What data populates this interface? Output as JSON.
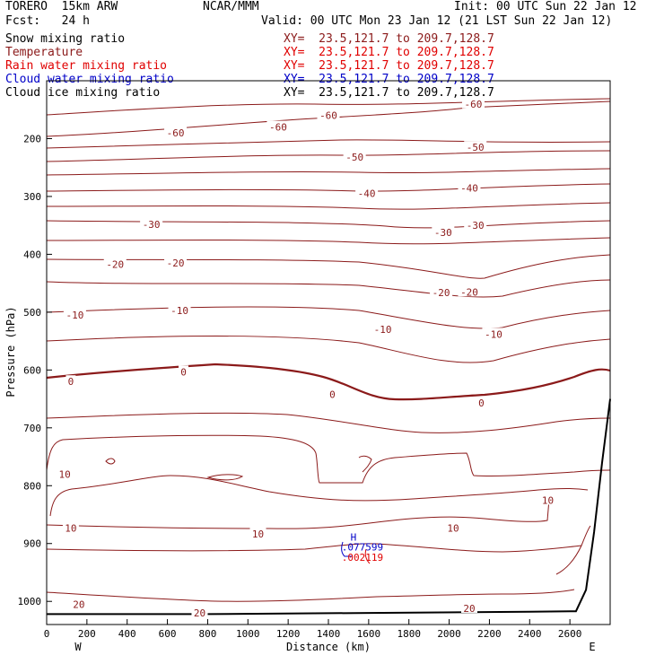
{
  "header": {
    "model": "TORERO  15km ARW",
    "center": "NCAR/MMM",
    "init": "Init: 00 UTC Sun 22 Jan 12",
    "fcst": "Fcst:   24 h",
    "valid": "Valid: 00 UTC Mon 23 Jan 12 (21 LST Sun 22 Jan 12)"
  },
  "legend": [
    {
      "label": "Snow mixing ratio",
      "xy": "XY=  23.5,121.7 to 209.7,128.7",
      "color": "#000000"
    },
    {
      "label": "Temperature",
      "xy": "XY=  23.5,121.7 to 209.7,128.7",
      "color": "#8b1a1a"
    },
    {
      "label": "Rain water mixing ratio",
      "xy": "XY=  23.5,121.7 to 209.7,128.7",
      "color": "#e00000"
    },
    {
      "label": "Cloud water mixing ratio",
      "xy": "XY=  23.5,121.7 to 209.7,128.7",
      "color": "#0000c8"
    },
    {
      "label": "Cloud ice mixing ratio",
      "xy": "XY=  23.5,121.7 to 209.7,128.7",
      "color": "#000000"
    }
  ],
  "chart_data": {
    "type": "contour-cross-section",
    "xlabel": "Distance (km)",
    "ylabel": "Pressure (hPa)",
    "xlim": [
      0,
      2800
    ],
    "ylim": [
      1040,
      100
    ],
    "x_ticks": [
      0,
      200,
      400,
      600,
      800,
      1000,
      1200,
      1400,
      1600,
      1800,
      2000,
      2200,
      2400,
      2600
    ],
    "y_ticks": [
      200,
      300,
      400,
      500,
      600,
      700,
      800,
      900,
      1000
    ],
    "x_ends": {
      "left": "W",
      "right": "E"
    },
    "temperature_labels": [
      {
        "text": "-60",
        "x": 640,
        "p": 190
      },
      {
        "text": "-60",
        "x": 1150,
        "p": 180
      },
      {
        "text": "-60",
        "x": 1400,
        "p": 160
      },
      {
        "text": "-60",
        "x": 2120,
        "p": 140
      },
      {
        "text": "-50",
        "x": 1530,
        "p": 232
      },
      {
        "text": "-50",
        "x": 2130,
        "p": 215
      },
      {
        "text": "-40",
        "x": 1590,
        "p": 295
      },
      {
        "text": "-40",
        "x": 2100,
        "p": 285
      },
      {
        "text": "-30",
        "x": 520,
        "p": 348
      },
      {
        "text": "-30",
        "x": 1970,
        "p": 362
      },
      {
        "text": "-30",
        "x": 2130,
        "p": 350
      },
      {
        "text": "-20",
        "x": 340,
        "p": 417
      },
      {
        "text": "-20",
        "x": 640,
        "p": 415
      },
      {
        "text": "-20",
        "x": 1960,
        "p": 466
      },
      {
        "text": "-20",
        "x": 2100,
        "p": 465
      },
      {
        "text": "-10",
        "x": 140,
        "p": 505
      },
      {
        "text": "-10",
        "x": 660,
        "p": 497
      },
      {
        "text": "-10",
        "x": 1670,
        "p": 530
      },
      {
        "text": "-10",
        "x": 2220,
        "p": 538
      },
      {
        "text": "0",
        "x": 120,
        "p": 620
      },
      {
        "text": "0",
        "x": 680,
        "p": 603
      },
      {
        "text": "0",
        "x": 1420,
        "p": 642
      },
      {
        "text": "0",
        "x": 2160,
        "p": 657
      },
      {
        "text": "10",
        "x": 90,
        "p": 780
      },
      {
        "text": "10",
        "x": 120,
        "p": 873
      },
      {
        "text": "10",
        "x": 1050,
        "p": 883
      },
      {
        "text": "10",
        "x": 2020,
        "p": 873
      },
      {
        "text": "10",
        "x": 2490,
        "p": 825
      },
      {
        "text": "20",
        "x": 160,
        "p": 1005
      },
      {
        "text": "20",
        "x": 760,
        "p": 1020
      },
      {
        "text": "20",
        "x": 2100,
        "p": 1012
      }
    ],
    "max_marker": {
      "symbol": "H",
      "x": 1560,
      "p": 895
    },
    "point_values": [
      {
        "text": ".077599",
        "color": "#0000c8",
        "x": 1560,
        "p": 912
      },
      {
        "text": ".002119",
        "color": "#e00000",
        "x": 1560,
        "p": 930
      }
    ],
    "surface_pressure": [
      [
        0,
        1022
      ],
      [
        800,
        1022
      ],
      [
        1600,
        1020
      ],
      [
        2400,
        1018
      ],
      [
        2630,
        1017
      ],
      [
        2680,
        980
      ],
      [
        2720,
        880
      ],
      [
        2760,
        760
      ],
      [
        2800,
        650
      ]
    ]
  }
}
